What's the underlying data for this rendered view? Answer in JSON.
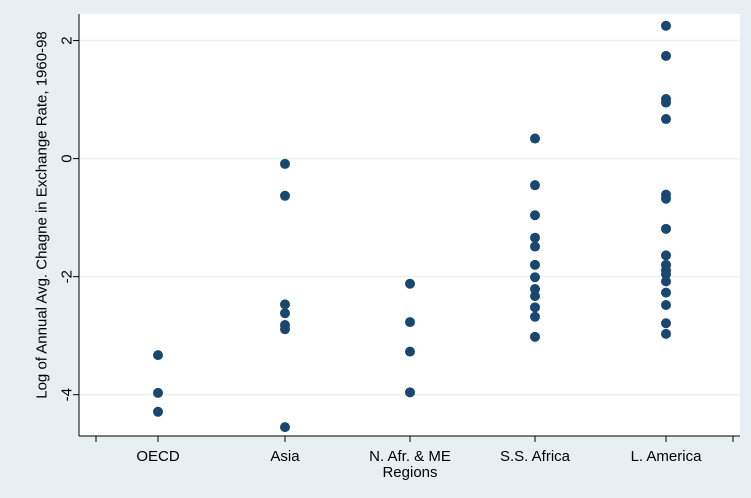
{
  "chart_data": {
    "type": "scatter",
    "title": "",
    "xlabel": "Regions",
    "ylabel": "Log of Annual Avg. Chagne in Exchange Rate, 1960-98",
    "categories": [
      "OECD",
      "Asia",
      "N. Afr. & ME",
      "S.S. Africa",
      "L. America"
    ],
    "ylim": [
      -4.7,
      2.45
    ],
    "yticks": [
      -4,
      -2,
      0,
      2
    ],
    "ytick_labels": [
      "-4",
      "-2",
      "0",
      "2"
    ],
    "grid": "horizontal",
    "legend": "none",
    "marker_color": "#1a476f",
    "background_color": "#e8eff3",
    "plot_background_color": "#ffffff",
    "series": [
      {
        "points": [
          {
            "category": "OECD",
            "y": -3.33
          },
          {
            "category": "OECD",
            "y": -3.97
          },
          {
            "category": "OECD",
            "y": -4.29
          },
          {
            "category": "Asia",
            "y": -0.09
          },
          {
            "category": "Asia",
            "y": -0.63
          },
          {
            "category": "Asia",
            "y": -2.47
          },
          {
            "category": "Asia",
            "y": -2.62
          },
          {
            "category": "Asia",
            "y": -2.82
          },
          {
            "category": "Asia",
            "y": -2.89
          },
          {
            "category": "Asia",
            "y": -4.55
          },
          {
            "category": "N. Afr. & ME",
            "y": -2.12
          },
          {
            "category": "N. Afr. & ME",
            "y": -2.77
          },
          {
            "category": "N. Afr. & ME",
            "y": -3.27
          },
          {
            "category": "N. Afr. & ME",
            "y": -3.96
          },
          {
            "category": "S.S. Africa",
            "y": 0.34
          },
          {
            "category": "S.S. Africa",
            "y": -0.45
          },
          {
            "category": "S.S. Africa",
            "y": -0.96
          },
          {
            "category": "S.S. Africa",
            "y": -1.34
          },
          {
            "category": "S.S. Africa",
            "y": -1.49
          },
          {
            "category": "S.S. Africa",
            "y": -1.8
          },
          {
            "category": "S.S. Africa",
            "y": -2.01
          },
          {
            "category": "S.S. Africa",
            "y": -2.21
          },
          {
            "category": "S.S. Africa",
            "y": -2.33
          },
          {
            "category": "S.S. Africa",
            "y": -2.52
          },
          {
            "category": "S.S. Africa",
            "y": -2.68
          },
          {
            "category": "S.S. Africa",
            "y": -3.02
          },
          {
            "category": "L. America",
            "y": 2.25
          },
          {
            "category": "L. America",
            "y": 1.74
          },
          {
            "category": "L. America",
            "y": 1.01
          },
          {
            "category": "L. America",
            "y": 0.95
          },
          {
            "category": "L. America",
            "y": 0.67
          },
          {
            "category": "L. America",
            "y": -0.61
          },
          {
            "category": "L. America",
            "y": -0.68
          },
          {
            "category": "L. America",
            "y": -1.19
          },
          {
            "category": "L. America",
            "y": -1.64
          },
          {
            "category": "L. America",
            "y": -1.8
          },
          {
            "category": "L. America",
            "y": -1.89
          },
          {
            "category": "L. America",
            "y": -1.96
          },
          {
            "category": "L. America",
            "y": -2.08
          },
          {
            "category": "L. America",
            "y": -2.27
          },
          {
            "category": "L. America",
            "y": -2.48
          },
          {
            "category": "L. America",
            "y": -2.79
          },
          {
            "category": "L. America",
            "y": -2.97
          }
        ]
      }
    ]
  }
}
